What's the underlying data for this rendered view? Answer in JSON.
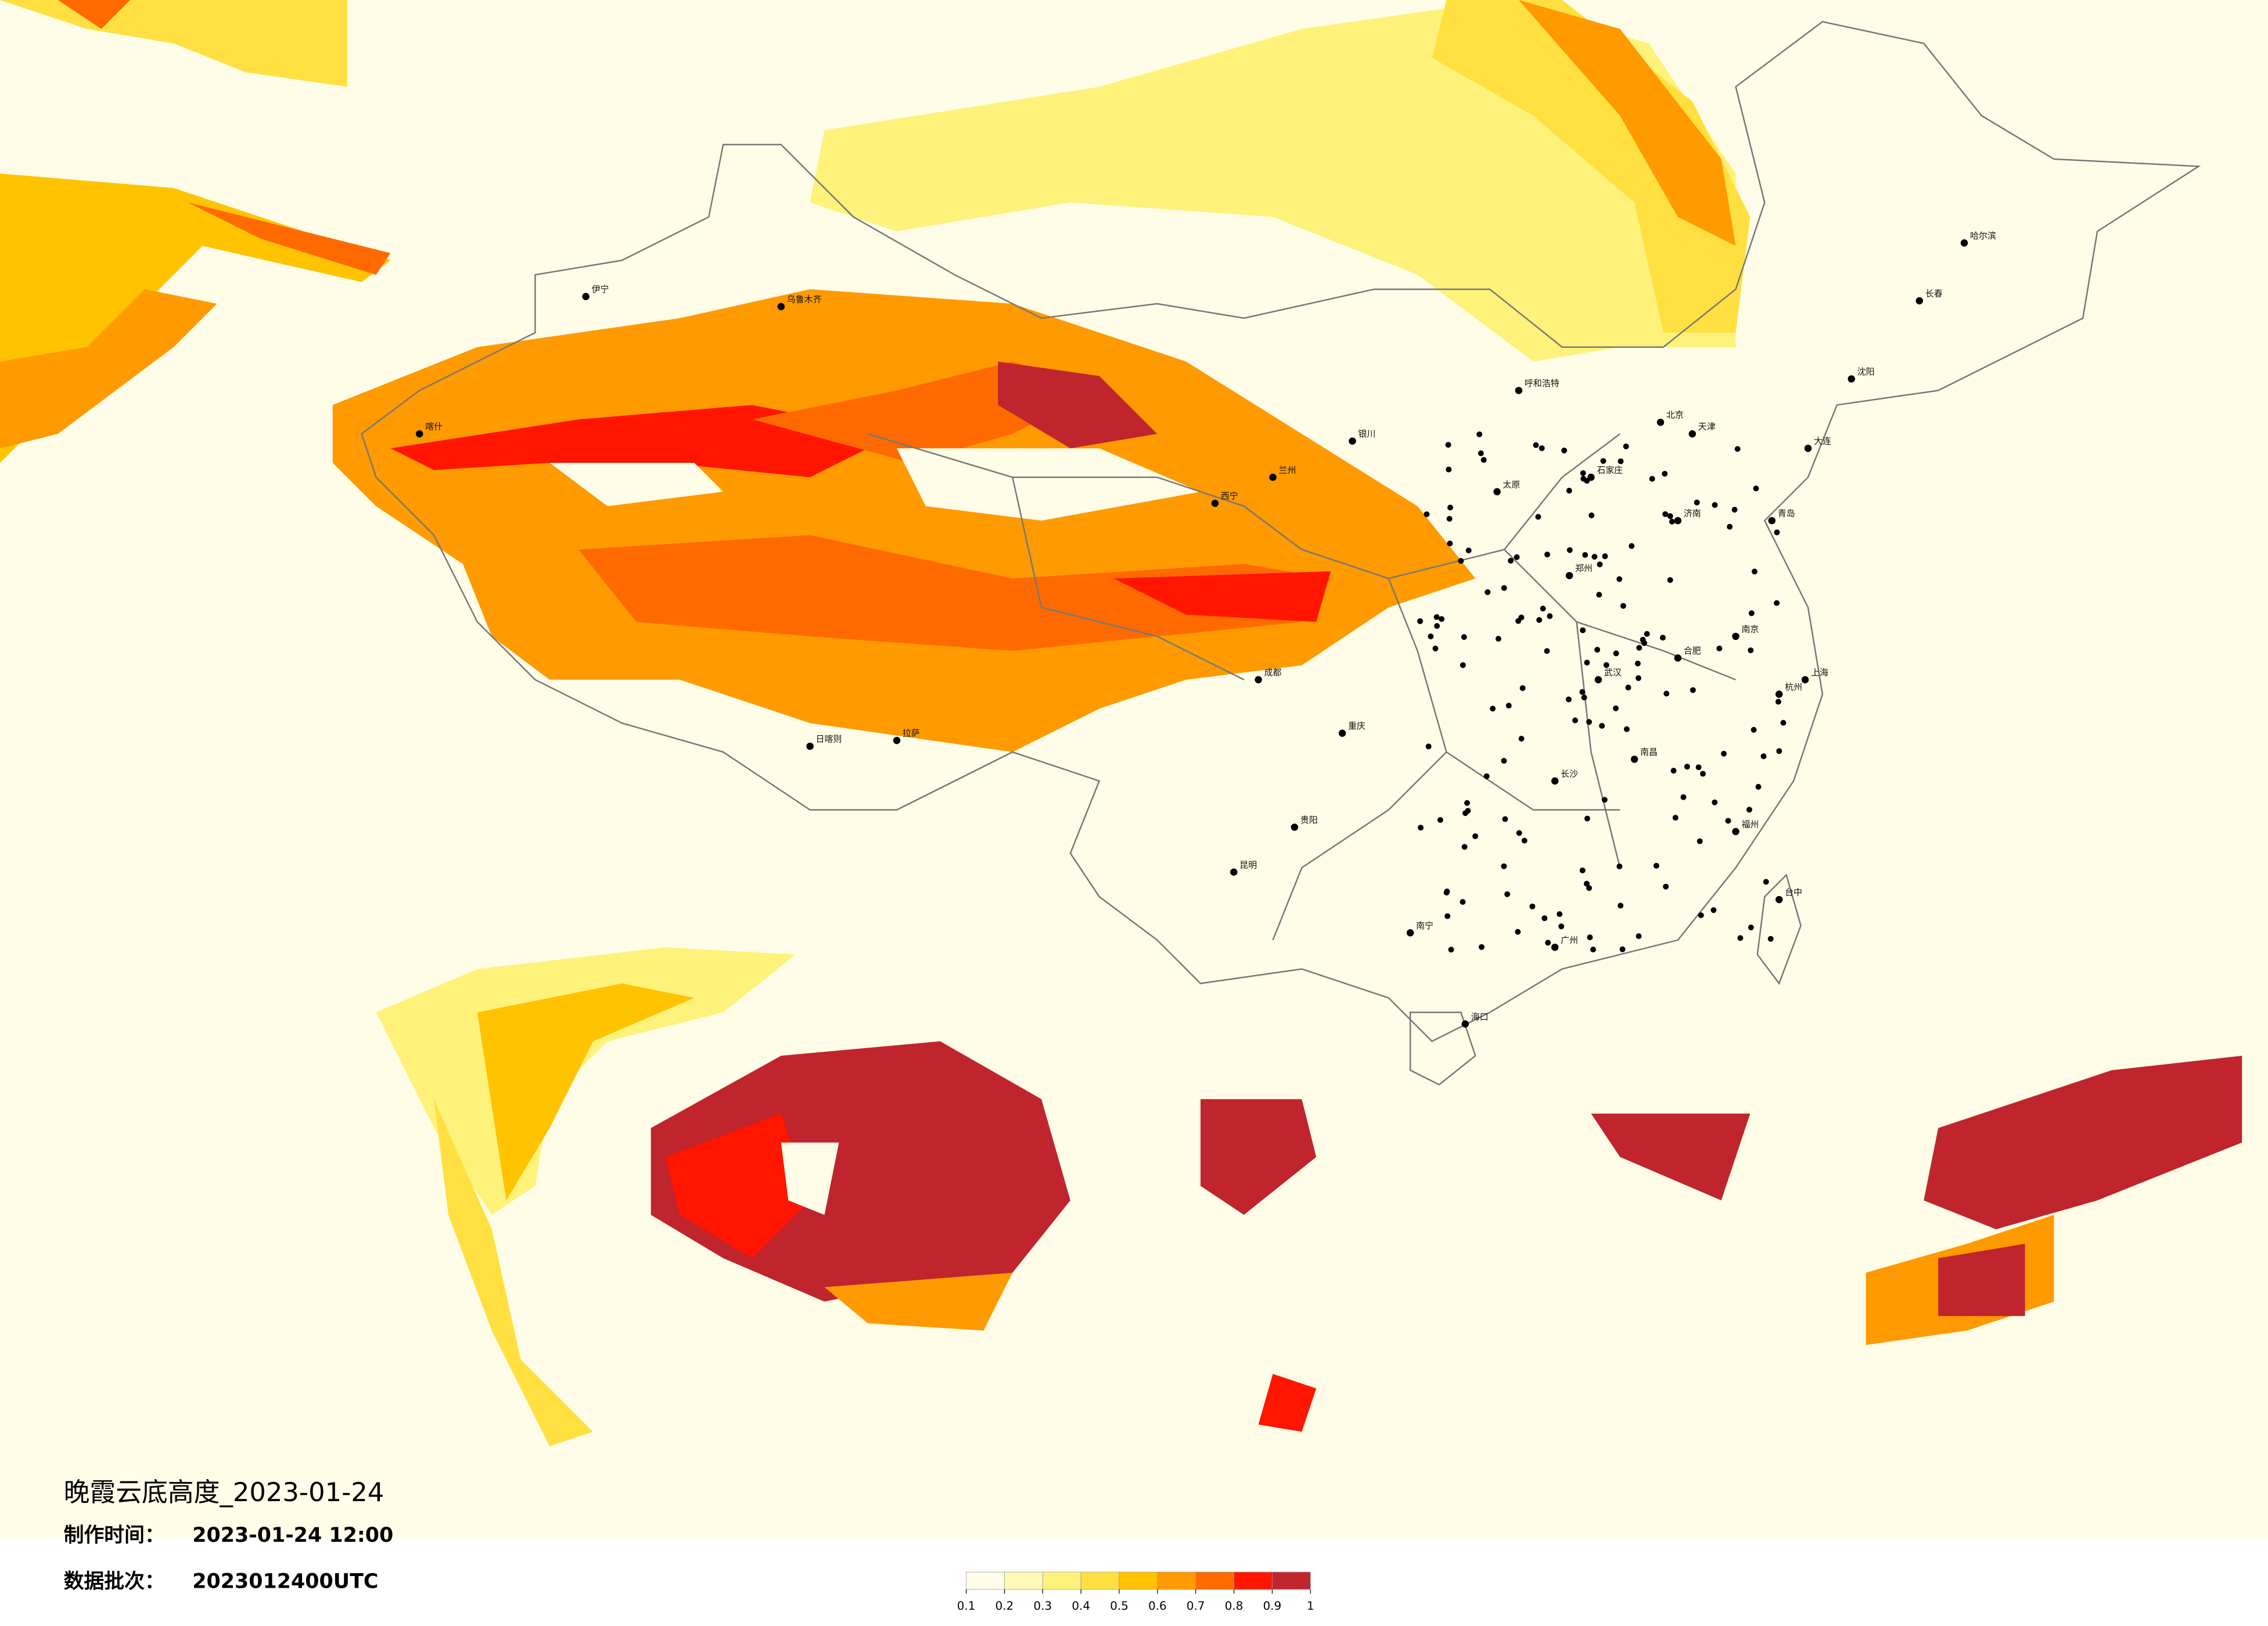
{
  "title": "晚霞云底高度_2023-01-24",
  "info": [
    {
      "label": "制作时间：",
      "value": "2023-01-24 12:00"
    },
    {
      "label": "数据批次：",
      "value": "2023012400UTC"
    }
  ],
  "legend": {
    "ticks": [
      0.1,
      0.2,
      0.3,
      0.4,
      0.5,
      0.6,
      0.7,
      0.8,
      0.9,
      1
    ],
    "colors": [
      "#fffdea",
      "#fffab8",
      "#fff27a",
      "#ffe040",
      "#ffc300",
      "#ff9a00",
      "#ff6a00",
      "#ff1500",
      "#c0242c"
    ]
  },
  "cities": [
    "北京",
    "上海",
    "广州",
    "重庆",
    "武汉",
    "郑州",
    "哈尔滨",
    "长春",
    "沈阳",
    "乌鲁木齐",
    "昆明",
    "海口",
    "台中",
    "西宁",
    "拉萨",
    "日喀则",
    "贵阳",
    "南宁",
    "长沙",
    "南昌",
    "福州",
    "济南",
    "太原",
    "呼和浩特",
    "石家庄",
    "成都",
    "兰州",
    "银川",
    "杭州",
    "南京",
    "合肥",
    "天津",
    "大连",
    "青岛",
    "喀什",
    "伊宁"
  ]
}
